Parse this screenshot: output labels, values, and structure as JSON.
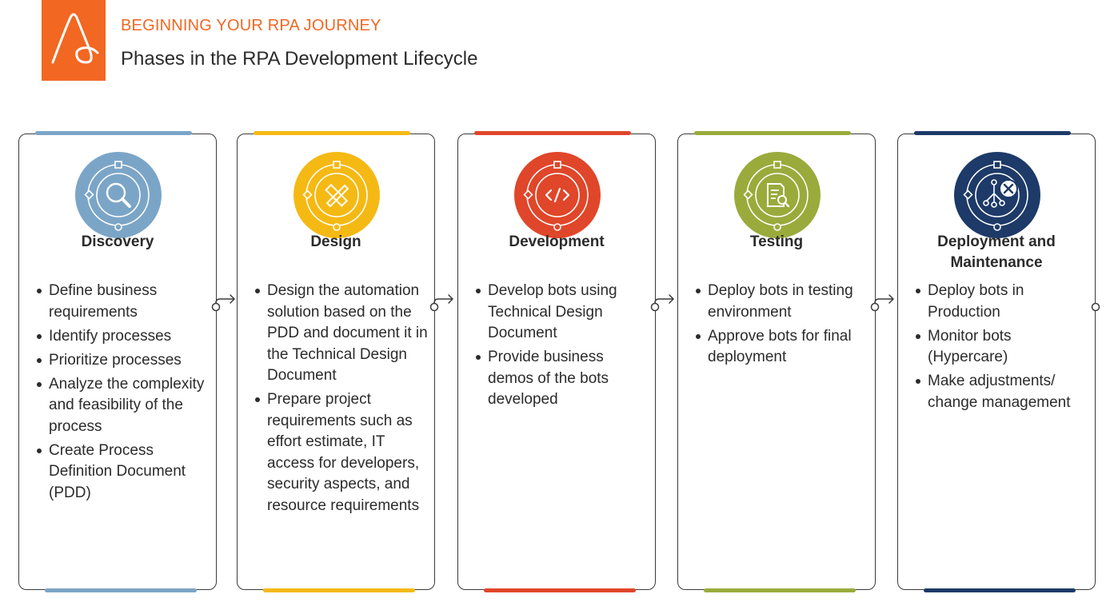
{
  "header": {
    "kicker": "BEGINNING YOUR RPA JOURNEY",
    "title": "Phases in the RPA Development Lifecycle"
  },
  "colors": {
    "brand": "#f26722",
    "discovery": "#7ba5c7",
    "design": "#f5b914",
    "development": "#e0462a",
    "testing": "#9aab3c",
    "deployment": "#1d3a68"
  },
  "phases": [
    {
      "name": "Discovery",
      "icon": "magnifier-icon",
      "items": [
        "Define business requirements",
        "Identify processes",
        "Prioritize processes",
        "Analyze the complexity and feasibility of the process",
        "Create Process Definition Document (PDD)"
      ]
    },
    {
      "name": "Design",
      "icon": "pencil-ruler-icon",
      "items": [
        "Design the automation solution based on the PDD and document it in the Technical Design Document",
        "Prepare project requirements such as effort estimate, IT access for developers, security aspects, and resource requirements"
      ]
    },
    {
      "name": "Development",
      "icon": "code-icon",
      "items": [
        "Develop bots using Technical Design Document",
        "Provide business demos of the bots developed"
      ]
    },
    {
      "name": "Testing",
      "icon": "document-search-icon",
      "items": [
        "Deploy bots in testing environment",
        "Approve bots for final deployment"
      ]
    },
    {
      "name": "Deployment and Maintenance",
      "icon": "tools-network-icon",
      "items": [
        "Deploy bots in Production",
        "Monitor bots (Hypercare)",
        "Make adjustments/ change management"
      ]
    }
  ]
}
